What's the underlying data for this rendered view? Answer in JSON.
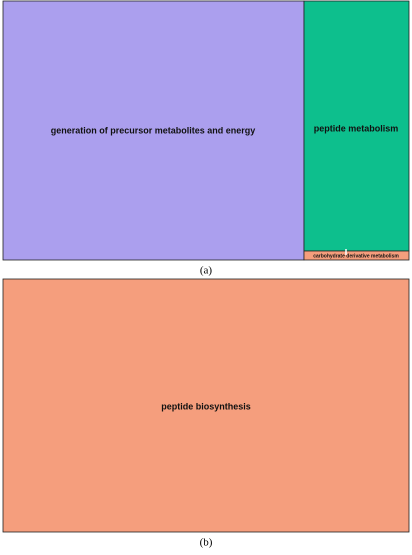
{
  "panels": [
    {
      "caption": "(a)",
      "nodes": [
        {
          "label": "generation of precursor metabolites and energy"
        },
        {
          "label": "peptide metabolism"
        },
        {
          "label": "carbohydrate derivative metabolism"
        }
      ]
    },
    {
      "caption": "(b)",
      "nodes": [
        {
          "label": "peptide biosynthesis"
        }
      ]
    }
  ]
}
